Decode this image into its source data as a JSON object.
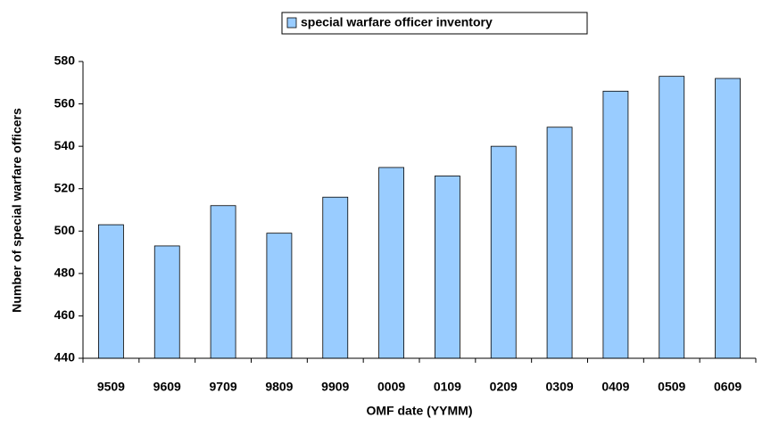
{
  "chart_data": {
    "type": "bar",
    "x_label": "OMF date (YYMM)",
    "y_label": "Number of special warfare officers",
    "categories": [
      "9509",
      "9609",
      "9709",
      "9809",
      "9909",
      "0009",
      "0109",
      "0209",
      "0309",
      "0409",
      "0509",
      "0609"
    ],
    "series": [
      {
        "name": "special warfare officer inventory",
        "color": "#99ccff",
        "values": [
          503,
          493,
          512,
          499,
          516,
          530,
          526,
          540,
          549,
          566,
          573,
          572
        ]
      }
    ],
    "ylim": [
      440,
      580
    ],
    "yticks": [
      440,
      460,
      480,
      500,
      520,
      540,
      560,
      580
    ],
    "grid": false,
    "legend": "top"
  }
}
